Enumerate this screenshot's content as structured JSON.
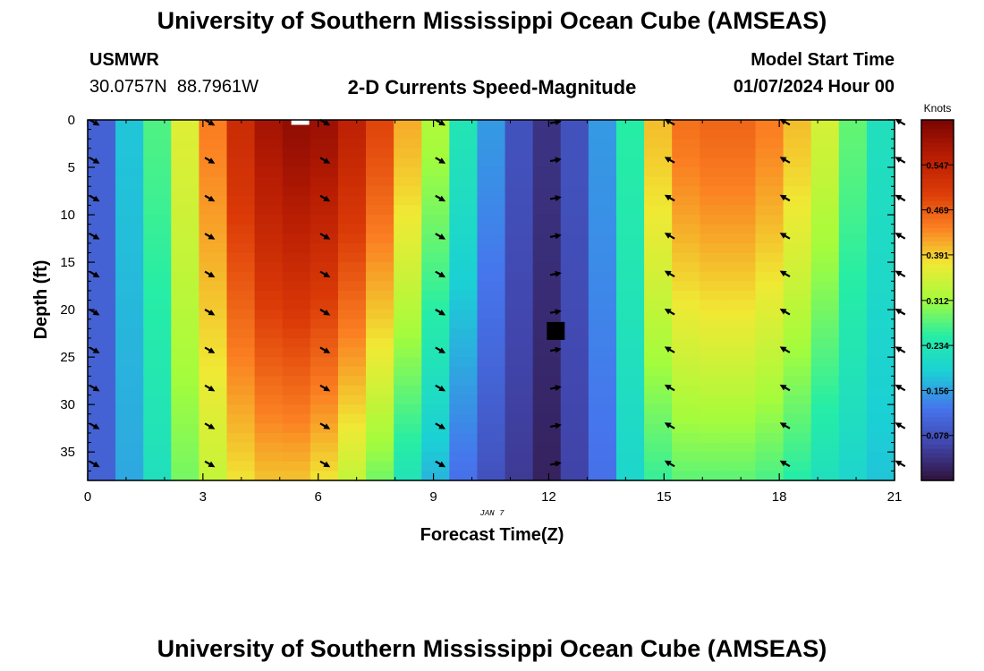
{
  "page_title": "University of Southern Mississippi Ocean Cube (AMSEAS)",
  "bottom_title": "University of Southern Mississippi Ocean Cube (AMSEAS)",
  "station": {
    "name": "USMWR",
    "lat": "30.0757N",
    "lon": "88.7961W"
  },
  "plot_title": "2-D Currents Speed-Magnitude",
  "model_start": {
    "label": "Model Start Time",
    "value": "01/07/2024 Hour 00"
  },
  "chart_data": {
    "type": "heatmap",
    "title": "2-D Currents Speed-Magnitude",
    "xlabel": "Forecast Time(Z)",
    "ylabel": "Depth (ft)",
    "date_label": "JAN 7",
    "x_ticks": [
      0,
      3,
      6,
      9,
      12,
      15,
      18,
      21
    ],
    "y_ticks": [
      0,
      5,
      10,
      15,
      20,
      25,
      30,
      35
    ],
    "xlim": [
      0,
      21
    ],
    "ylim": [
      0,
      38
    ],
    "colorbar": {
      "label": "Knots",
      "ticks": [
        "0.547",
        "0.469",
        "0.391",
        "0.312",
        "0.234",
        "0.156",
        "0.078"
      ],
      "range": [
        0.0,
        0.625
      ]
    },
    "speed_profile": {
      "hours": [
        0,
        0.75,
        1.5,
        2.25,
        3,
        3.75,
        4.5,
        5.25,
        6,
        6.75,
        7.5,
        8.25,
        9,
        9.75,
        10.5,
        11.25,
        12,
        12.75,
        13.5,
        14.25,
        15,
        15.75,
        16.5,
        17.25,
        18,
        18.75,
        19.5,
        20.25,
        21
      ],
      "surface": [
        0.1,
        0.18,
        0.27,
        0.36,
        0.44,
        0.53,
        0.58,
        0.6,
        0.59,
        0.55,
        0.49,
        0.41,
        0.32,
        0.23,
        0.15,
        0.08,
        0.04,
        0.08,
        0.15,
        0.25,
        0.4,
        0.45,
        0.46,
        0.46,
        0.44,
        0.4,
        0.35,
        0.28,
        0.22
      ],
      "bottom": [
        0.1,
        0.16,
        0.22,
        0.29,
        0.34,
        0.38,
        0.4,
        0.4,
        0.38,
        0.34,
        0.29,
        0.23,
        0.17,
        0.12,
        0.08,
        0.05,
        0.02,
        0.06,
        0.12,
        0.2,
        0.26,
        0.28,
        0.28,
        0.28,
        0.27,
        0.25,
        0.22,
        0.2,
        0.18
      ]
    },
    "vector_hours": [
      0,
      3,
      6,
      9,
      12,
      15,
      18,
      21
    ],
    "vector_depths": [
      0,
      4,
      8,
      12,
      16,
      20,
      24,
      28,
      32,
      36
    ],
    "vector_directions_deg": [
      120,
      120,
      120,
      120,
      80,
      300,
      300,
      300
    ]
  }
}
